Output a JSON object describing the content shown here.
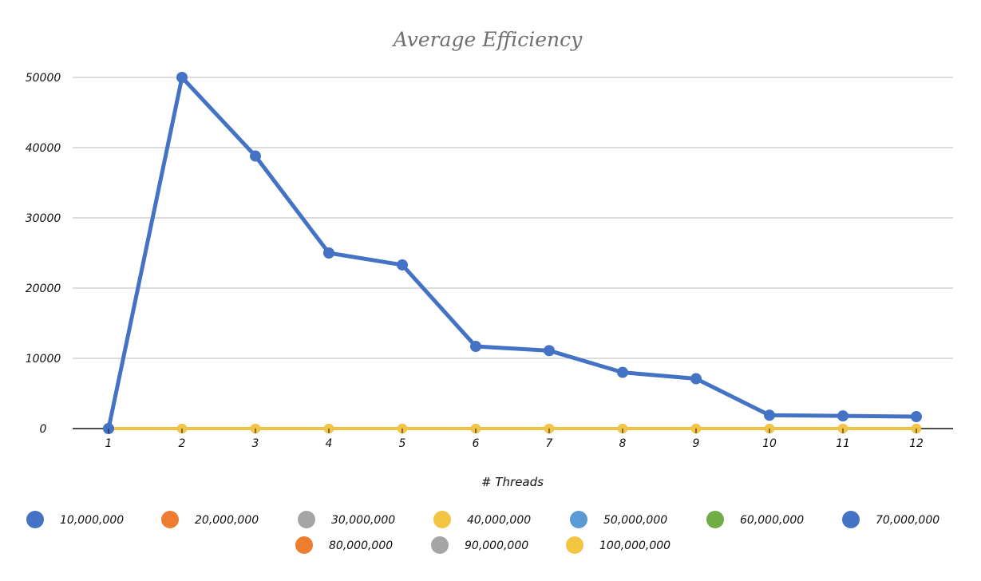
{
  "chart_data": {
    "type": "line",
    "title": "Average Efficiency",
    "xlabel": "# Threads",
    "ylabel": "",
    "categories": [
      "1",
      "2",
      "3",
      "4",
      "5",
      "6",
      "7",
      "8",
      "9",
      "10",
      "11",
      "12"
    ],
    "ylim": [
      0,
      50000
    ],
    "yticks": [
      0,
      10000,
      20000,
      30000,
      40000,
      50000
    ],
    "ytick_labels": [
      "0",
      "10000",
      "20000",
      "30000",
      "40000",
      "50000"
    ],
    "grid": true,
    "legend_position": "bottom",
    "series": [
      {
        "name": "10,000,000",
        "color": "#4472c4",
        "values": [
          0,
          0,
          0,
          0,
          0,
          0,
          0,
          0,
          0,
          0,
          0,
          0
        ]
      },
      {
        "name": "20,000,000",
        "color": "#ed7d31",
        "values": [
          0,
          0,
          0,
          0,
          0,
          0,
          0,
          0,
          0,
          0,
          0,
          0
        ]
      },
      {
        "name": "30,000,000",
        "color": "#a5a5a5",
        "values": [
          0,
          0,
          0,
          0,
          0,
          0,
          0,
          0,
          0,
          0,
          0,
          0
        ]
      },
      {
        "name": "40,000,000",
        "color": "#f4c542",
        "values": [
          0,
          0,
          0,
          0,
          0,
          0,
          0,
          0,
          0,
          0,
          0,
          0
        ]
      },
      {
        "name": "50,000,000",
        "color": "#5b9bd5",
        "values": [
          0,
          0,
          0,
          0,
          0,
          0,
          0,
          0,
          0,
          0,
          0,
          0
        ]
      },
      {
        "name": "60,000,000",
        "color": "#70ad47",
        "values": [
          0,
          0,
          0,
          0,
          0,
          0,
          0,
          0,
          0,
          0,
          0,
          0
        ]
      },
      {
        "name": "70,000,000",
        "color": "#4472c4",
        "values": [
          0,
          50000,
          38800,
          25000,
          23300,
          11700,
          11100,
          8000,
          7100,
          1900,
          1800,
          1700
        ]
      },
      {
        "name": "80,000,000",
        "color": "#ed7d31",
        "values": [
          0,
          0,
          0,
          0,
          0,
          0,
          0,
          0,
          0,
          0,
          0,
          0
        ]
      },
      {
        "name": "90,000,000",
        "color": "#a5a5a5",
        "values": [
          0,
          0,
          0,
          0,
          0,
          0,
          0,
          0,
          0,
          0,
          0,
          0
        ]
      },
      {
        "name": "100,000,000",
        "color": "#f4c542",
        "values": [
          0,
          0,
          0,
          0,
          0,
          0,
          0,
          0,
          0,
          0,
          0,
          0
        ]
      }
    ]
  }
}
